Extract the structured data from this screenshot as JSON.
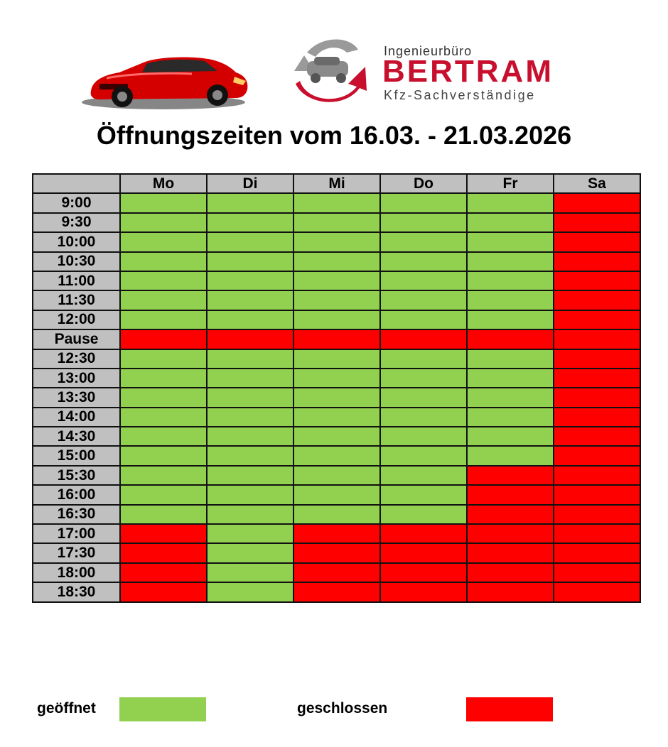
{
  "brand": {
    "top_line": "Ingenieurbüro",
    "name": "BERTRAM",
    "sub_line": "Kfz-Sachverständige"
  },
  "title": "Öffnungszeiten vom 16.03. - 21.03.2026",
  "colors": {
    "open": "#92d050",
    "closed": "#ff0000",
    "header_gray": "#c0c0c0",
    "brand_red": "#c8102e"
  },
  "schedule": {
    "days": [
      "Mo",
      "Di",
      "Mi",
      "Do",
      "Fr",
      "Sa"
    ],
    "rows": [
      {
        "time": "9:00",
        "status": [
          "open",
          "open",
          "open",
          "open",
          "open",
          "closed"
        ]
      },
      {
        "time": "9:30",
        "status": [
          "open",
          "open",
          "open",
          "open",
          "open",
          "closed"
        ]
      },
      {
        "time": "10:00",
        "status": [
          "open",
          "open",
          "open",
          "open",
          "open",
          "closed"
        ]
      },
      {
        "time": "10:30",
        "status": [
          "open",
          "open",
          "open",
          "open",
          "open",
          "closed"
        ]
      },
      {
        "time": "11:00",
        "status": [
          "open",
          "open",
          "open",
          "open",
          "open",
          "closed"
        ]
      },
      {
        "time": "11:30",
        "status": [
          "open",
          "open",
          "open",
          "open",
          "open",
          "closed"
        ]
      },
      {
        "time": "12:00",
        "status": [
          "open",
          "open",
          "open",
          "open",
          "open",
          "closed"
        ]
      },
      {
        "time": "Pause",
        "status": [
          "closed",
          "closed",
          "closed",
          "closed",
          "closed",
          "closed"
        ]
      },
      {
        "time": "12:30",
        "status": [
          "open",
          "open",
          "open",
          "open",
          "open",
          "closed"
        ]
      },
      {
        "time": "13:00",
        "status": [
          "open",
          "open",
          "open",
          "open",
          "open",
          "closed"
        ]
      },
      {
        "time": "13:30",
        "status": [
          "open",
          "open",
          "open",
          "open",
          "open",
          "closed"
        ]
      },
      {
        "time": "14:00",
        "status": [
          "open",
          "open",
          "open",
          "open",
          "open",
          "closed"
        ]
      },
      {
        "time": "14:30",
        "status": [
          "open",
          "open",
          "open",
          "open",
          "open",
          "closed"
        ]
      },
      {
        "time": "15:00",
        "status": [
          "open",
          "open",
          "open",
          "open",
          "open",
          "closed"
        ]
      },
      {
        "time": "15:30",
        "status": [
          "open",
          "open",
          "open",
          "open",
          "closed",
          "closed"
        ]
      },
      {
        "time": "16:00",
        "status": [
          "open",
          "open",
          "open",
          "open",
          "closed",
          "closed"
        ]
      },
      {
        "time": "16:30",
        "status": [
          "open",
          "open",
          "open",
          "open",
          "closed",
          "closed"
        ]
      },
      {
        "time": "17:00",
        "status": [
          "closed",
          "open",
          "closed",
          "closed",
          "closed",
          "closed"
        ]
      },
      {
        "time": "17:30",
        "status": [
          "closed",
          "open",
          "closed",
          "closed",
          "closed",
          "closed"
        ]
      },
      {
        "time": "18:00",
        "status": [
          "closed",
          "open",
          "closed",
          "closed",
          "closed",
          "closed"
        ]
      },
      {
        "time": "18:30",
        "status": [
          "closed",
          "open",
          "closed",
          "closed",
          "closed",
          "closed"
        ]
      }
    ]
  },
  "legend": {
    "open_label": "geöffnet",
    "closed_label": "geschlossen"
  }
}
